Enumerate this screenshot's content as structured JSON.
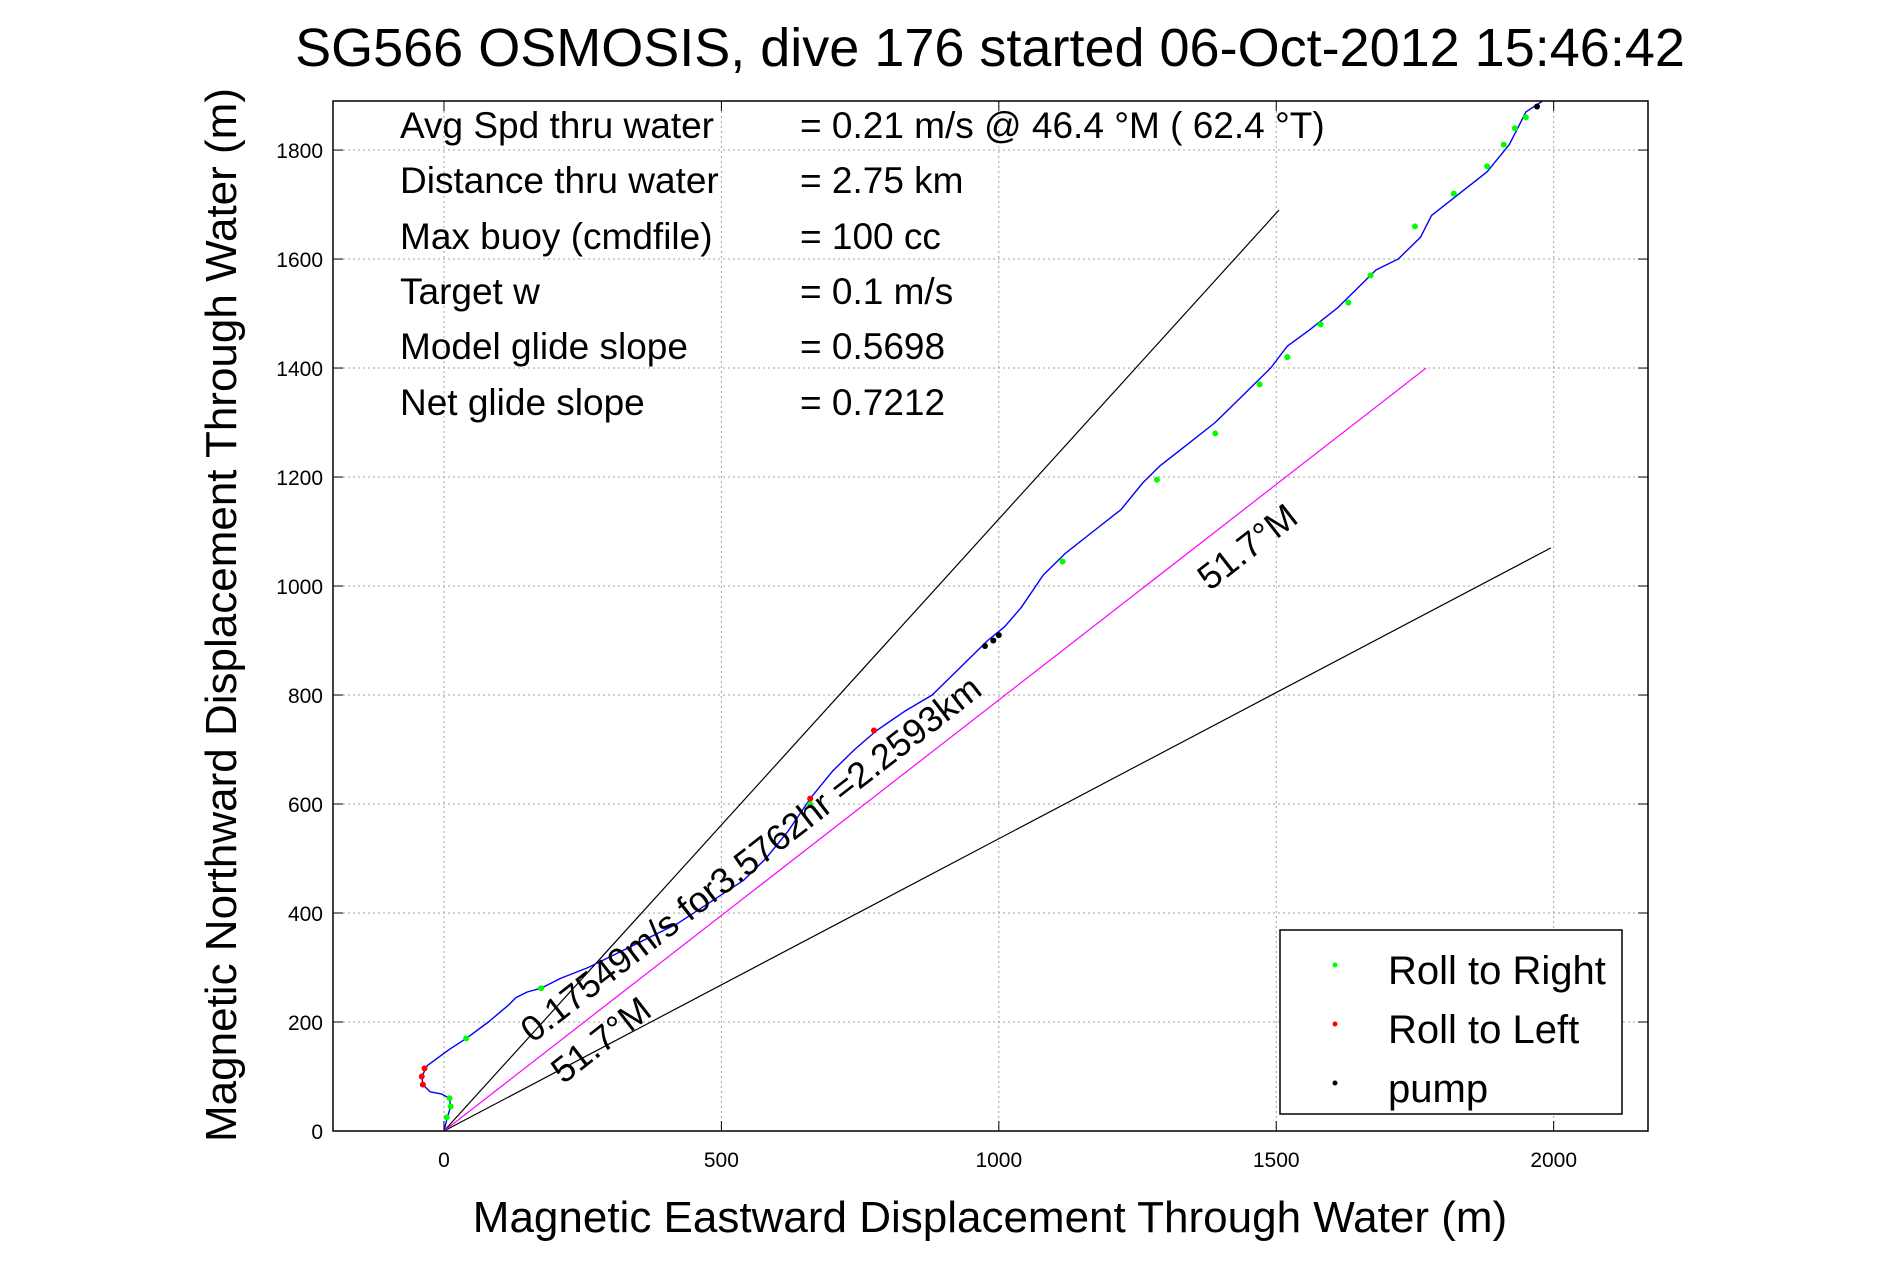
{
  "chart_data": {
    "type": "line",
    "title": "SG566 OSMOSIS, dive 176 started 06-Oct-2012 15:46:42",
    "xlabel": "Magnetic Eastward Displacement Through Water (m)",
    "ylabel": "Magnetic Northward Displacement Through Water (m)",
    "xlim": [
      -200,
      2170
    ],
    "ylim": [
      0,
      1890
    ],
    "xticks": [
      "0",
      "500",
      "1000",
      "1500",
      "2000"
    ],
    "yticks": [
      "0",
      "200",
      "400",
      "600",
      "800",
      "1000",
      "1200",
      "1400",
      "1600",
      "1800"
    ],
    "xtick_values": [
      0,
      500,
      1000,
      1500,
      2000
    ],
    "ytick_values": [
      0,
      200,
      400,
      600,
      800,
      1000,
      1200,
      1400,
      1600,
      1800
    ],
    "grid": true,
    "legend_position": "bottom-right",
    "stats": [
      {
        "label": "Avg Spd thru water",
        "value": "=  0.21 m/s @  46.4 °M ( 62.4 °T)"
      },
      {
        "label": "Distance thru water",
        "value": "=  2.75 km"
      },
      {
        "label": "Max buoy (cmdfile)",
        "value": "= 100 cc"
      },
      {
        "label": "Target w",
        "value": "= 0.1 m/s"
      },
      {
        "label": "Model glide slope",
        "value": "= 0.5698"
      },
      {
        "label": "Net glide slope",
        "value": "= 0.7212"
      }
    ],
    "annotations": [
      {
        "text": "0.17549m/s for3.5762hr =2.2593km",
        "x": 160,
        "y": 160
      },
      {
        "text": "51.7°M",
        "x": 215,
        "y": 85
      },
      {
        "text": "51.7°M",
        "x": 1380,
        "y": 990
      }
    ],
    "reference_lines": [
      {
        "name": "upper bound",
        "x": [
          0,
          1505
        ],
        "y": [
          0,
          1690
        ],
        "color": "#000000"
      },
      {
        "name": "lower bound",
        "x": [
          0,
          1995
        ],
        "y": [
          0,
          1070
        ],
        "color": "#000000"
      },
      {
        "name": "51.7 M heading",
        "x": [
          0,
          1770
        ],
        "y": [
          0,
          1400
        ],
        "color": "#ff00ff"
      }
    ],
    "series": [
      {
        "color": "#0000ff",
        "x": [
          0,
          5,
          12,
          10,
          -5,
          -25,
          -38,
          -40,
          -30,
          -10,
          10,
          40,
          80,
          115,
          130,
          150,
          175,
          210,
          260,
          300,
          360,
          420,
          480,
          540,
          580,
          620,
          660,
          700,
          740,
          780,
          830,
          880,
          930,
          980,
          1010,
          1040,
          1080,
          1120,
          1170,
          1220,
          1260,
          1290,
          1340,
          1390,
          1440,
          1490,
          1520,
          1560,
          1610,
          1650,
          1680,
          1720,
          1760,
          1780,
          1830,
          1880,
          1920,
          1940,
          1950,
          1980
        ],
        "y": [
          0,
          20,
          45,
          60,
          68,
          72,
          85,
          100,
          120,
          135,
          150,
          170,
          200,
          230,
          245,
          255,
          262,
          280,
          300,
          320,
          350,
          380,
          420,
          460,
          500,
          550,
          610,
          660,
          700,
          735,
          770,
          800,
          850,
          900,
          925,
          960,
          1020,
          1060,
          1100,
          1140,
          1190,
          1220,
          1260,
          1300,
          1350,
          1400,
          1440,
          1470,
          1510,
          1550,
          1580,
          1600,
          1640,
          1680,
          1720,
          1760,
          1810,
          1850,
          1870,
          1890
        ]
      }
    ],
    "legend": [
      {
        "label": "Roll to Right",
        "color": "#00ff00"
      },
      {
        "label": "Roll to Left",
        "color": "#ff0000"
      },
      {
        "label": "pump",
        "color": "#000000"
      }
    ],
    "markers": {
      "roll_right": {
        "color": "#00ff00",
        "x": [
          5,
          12,
          10,
          40,
          175,
          660,
          1115,
          1285,
          1390,
          1470,
          1520,
          1580,
          1630,
          1670,
          1750,
          1820,
          1880,
          1910,
          1930,
          1950
        ],
        "y": [
          25,
          45,
          60,
          170,
          262,
          600,
          1045,
          1195,
          1280,
          1370,
          1420,
          1480,
          1520,
          1570,
          1660,
          1720,
          1770,
          1810,
          1840,
          1860
        ]
      },
      "roll_left": {
        "color": "#ff0000",
        "x": [
          -38,
          -40,
          -35,
          660,
          775
        ],
        "y": [
          85,
          100,
          115,
          610,
          735
        ]
      },
      "pump": {
        "color": "#000000",
        "x": [
          975,
          990,
          1000,
          1970
        ],
        "y": [
          890,
          900,
          910,
          1880
        ]
      }
    }
  }
}
